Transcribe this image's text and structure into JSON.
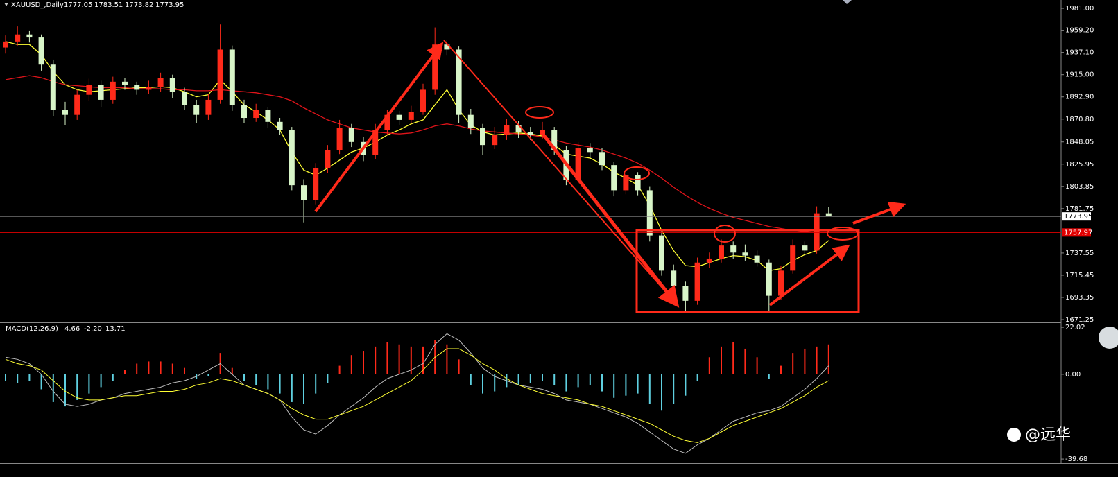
{
  "chart_data": [
    {
      "type": "candlestick",
      "symbol": "XAUUSD_,Daily",
      "open": [
        1942,
        1948,
        1955,
        1952,
        1925,
        1880,
        1875,
        1895,
        1905,
        1890,
        1908,
        1905,
        1900,
        1903,
        1912,
        1898,
        1885,
        1875,
        1890,
        1940,
        1885,
        1872,
        1880,
        1868,
        1860,
        1805,
        1790,
        1822,
        1840,
        1862,
        1848,
        1835,
        1860,
        1875,
        1870,
        1878,
        1900,
        1945,
        1940,
        1875,
        1862,
        1845,
        1855,
        1865,
        1858,
        1855,
        1860,
        1840,
        1810,
        1842,
        1838,
        1825,
        1800,
        1815,
        1800,
        1755,
        1720,
        1705,
        1690,
        1728,
        1732,
        1745,
        1738,
        1735,
        1728,
        1695,
        1720,
        1745,
        1740,
        1777.05
      ],
      "high": [
        1954,
        1963,
        1959,
        1955,
        1930,
        1888,
        1900,
        1911,
        1909,
        1913,
        1912,
        1908,
        1909,
        1917,
        1915,
        1902,
        1890,
        1896,
        1965,
        1944,
        1890,
        1886,
        1883,
        1872,
        1863,
        1811,
        1827,
        1845,
        1870,
        1866,
        1853,
        1866,
        1880,
        1879,
        1884,
        1906,
        1962,
        1950,
        1943,
        1881,
        1866,
        1863,
        1871,
        1869,
        1863,
        1868,
        1863,
        1844,
        1848,
        1847,
        1842,
        1828,
        1820,
        1818,
        1804,
        1760,
        1726,
        1709,
        1733,
        1738,
        1751,
        1749,
        1746,
        1740,
        1731,
        1725,
        1751,
        1749,
        1784,
        1783.51
      ],
      "low": [
        1936,
        1944,
        1947,
        1919,
        1874,
        1865,
        1870,
        1889,
        1883,
        1886,
        1900,
        1895,
        1896,
        1898,
        1892,
        1880,
        1867,
        1870,
        1886,
        1879,
        1867,
        1868,
        1862,
        1855,
        1800,
        1768,
        1786,
        1817,
        1836,
        1843,
        1829,
        1831,
        1855,
        1865,
        1866,
        1875,
        1895,
        1934,
        1867,
        1856,
        1835,
        1841,
        1850,
        1852,
        1850,
        1851,
        1835,
        1805,
        1806,
        1832,
        1820,
        1794,
        1796,
        1795,
        1749,
        1715,
        1700,
        1680,
        1686,
        1723,
        1728,
        1732,
        1730,
        1724,
        1680,
        1691,
        1717,
        1735,
        1737,
        1773.82
      ],
      "close": [
        1948,
        1955,
        1952,
        1925,
        1880,
        1875,
        1895,
        1905,
        1890,
        1908,
        1905,
        1900,
        1903,
        1912,
        1898,
        1885,
        1875,
        1890,
        1940,
        1885,
        1872,
        1880,
        1868,
        1860,
        1805,
        1790,
        1822,
        1840,
        1862,
        1848,
        1835,
        1860,
        1875,
        1870,
        1878,
        1900,
        1945,
        1940,
        1875,
        1862,
        1845,
        1855,
        1865,
        1858,
        1855,
        1860,
        1840,
        1810,
        1842,
        1838,
        1825,
        1800,
        1815,
        1800,
        1755,
        1720,
        1705,
        1690,
        1728,
        1732,
        1745,
        1738,
        1735,
        1728,
        1695,
        1720,
        1745,
        1740,
        1777.05,
        1773.95
      ],
      "up_color": "#ff2a1a",
      "down_color": "#d8f5c8",
      "ma": [
        {
          "color": "#ffff33",
          "values": [
            1948,
            1945,
            1945,
            1935,
            1918,
            1905,
            1900,
            1898,
            1899,
            1900,
            1901,
            1902,
            1902,
            1903,
            1902,
            1898,
            1893,
            1895,
            1910,
            1898,
            1885,
            1878,
            1870,
            1860,
            1838,
            1820,
            1815,
            1822,
            1830,
            1838,
            1842,
            1848,
            1855,
            1860,
            1866,
            1870,
            1885,
            1900,
            1880,
            1865,
            1858,
            1855,
            1856,
            1857,
            1856,
            1854,
            1845,
            1836,
            1834,
            1832,
            1826,
            1818,
            1812,
            1805,
            1785,
            1760,
            1740,
            1725,
            1724,
            1728,
            1732,
            1735,
            1734,
            1730,
            1720,
            1722,
            1730,
            1736,
            1740,
            1750
          ]
        },
        {
          "color": "#e0141a",
          "values": [
            1910,
            1912,
            1914,
            1912,
            1908,
            1905,
            1904,
            1903,
            1902,
            1902,
            1902,
            1901,
            1901,
            1901,
            1900,
            1900,
            1899,
            1899,
            1900,
            1899,
            1898,
            1897,
            1895,
            1893,
            1889,
            1882,
            1876,
            1870,
            1866,
            1862,
            1860,
            1858,
            1857,
            1856,
            1857,
            1860,
            1864,
            1866,
            1864,
            1861,
            1859,
            1858,
            1857,
            1856,
            1855,
            1853,
            1850,
            1847,
            1845,
            1843,
            1840,
            1836,
            1832,
            1827,
            1820,
            1812,
            1803,
            1795,
            1788,
            1782,
            1777,
            1773,
            1770,
            1767,
            1764,
            1762,
            1760,
            1759,
            1758,
            1758
          ]
        }
      ],
      "level": 1757.97,
      "level_color": "#e00000",
      "current_color": "#8a8a8a",
      "ylim": [
        1668.5,
        1989.3
      ],
      "yticks": [
        {
          "value": 1981,
          "label": "1981.00"
        },
        {
          "value": 1959.2,
          "label": "1959.20"
        },
        {
          "value": 1937.1,
          "label": "1937.10"
        },
        {
          "value": 1915,
          "label": "1915.00"
        },
        {
          "value": 1892.9,
          "label": "1892.90"
        },
        {
          "value": 1870.8,
          "label": "1870.80"
        },
        1848.05,
        1825.95,
        1803.85,
        1781.75,
        1737.55,
        1715.45,
        1693.35,
        1671.25
      ]
    },
    {
      "type": "macd",
      "title": "MACD(12,26,9)",
      "header_values": [
        4.66,
        {
          "value": -2.2,
          "label": "-2.20"
        },
        13.71
      ],
      "histogram": [
        -3,
        -4,
        -3,
        -7,
        -13,
        -15,
        -12,
        -9,
        -6,
        -3,
        2,
        5,
        6,
        6,
        5,
        3,
        -2,
        -1,
        10,
        3,
        -3,
        -5,
        -7,
        -9,
        -13,
        -14,
        -9,
        -4,
        4,
        9,
        11,
        13,
        15,
        14,
        13,
        13,
        16,
        14,
        7,
        -5,
        -9,
        -8,
        -6,
        -5,
        -4,
        -3,
        -5,
        -8,
        -6,
        -5,
        -8,
        -11,
        -10,
        -9,
        -14,
        -17,
        -14,
        -10,
        -3,
        8,
        13,
        15,
        12,
        8,
        -2,
        4,
        10,
        12,
        13,
        14
      ],
      "positive_color": "#ff2a1a",
      "negative_color": "#5fd0e0",
      "series": [
        {
          "color": "#bdbdbd",
          "values": [
            8,
            7,
            5,
            0,
            -8,
            -14,
            -15,
            -14,
            -12,
            -11,
            -9,
            -8,
            -7,
            -6,
            -4,
            -3,
            -1,
            2,
            5,
            0,
            -5,
            -7,
            -9,
            -12,
            -20,
            -26,
            -28,
            -24,
            -19,
            -15,
            -11,
            -6,
            -2,
            0,
            2,
            5,
            14,
            19,
            16,
            10,
            3,
            -1,
            -3,
            -5,
            -6,
            -7,
            -9,
            -12,
            -13,
            -14,
            -16,
            -18,
            -20,
            -23,
            -27,
            -31,
            -35,
            -37,
            -33,
            -30,
            -26,
            -22,
            -20,
            -18,
            -17,
            -15,
            -11,
            -7,
            -2,
            4
          ]
        },
        {
          "color": "#ffff33",
          "values": [
            7,
            5,
            4,
            2,
            -3,
            -8,
            -11,
            -12,
            -12,
            -11,
            -10,
            -10,
            -9,
            -8,
            -8,
            -7,
            -5,
            -4,
            -2,
            -3,
            -5,
            -7,
            -9,
            -12,
            -16,
            -19,
            -21,
            -21,
            -19,
            -17,
            -15,
            -12,
            -9,
            -6,
            -3,
            2,
            8,
            12,
            12,
            9,
            5,
            2,
            -2,
            -5,
            -7,
            -9,
            -10,
            -11,
            -12,
            -14,
            -15,
            -17,
            -19,
            -21,
            -23,
            -26,
            -29,
            -31,
            -32,
            -30,
            -27,
            -24,
            -22,
            -20,
            -18,
            -16,
            -13,
            -10,
            -6,
            -3
          ]
        }
      ],
      "ylim": [
        -41.6,
        24
      ],
      "yticks": [
        22.02,
        {
          "value": 0,
          "label": "0.00"
        },
        -39.68
      ]
    }
  ],
  "watermark": "@远华"
}
